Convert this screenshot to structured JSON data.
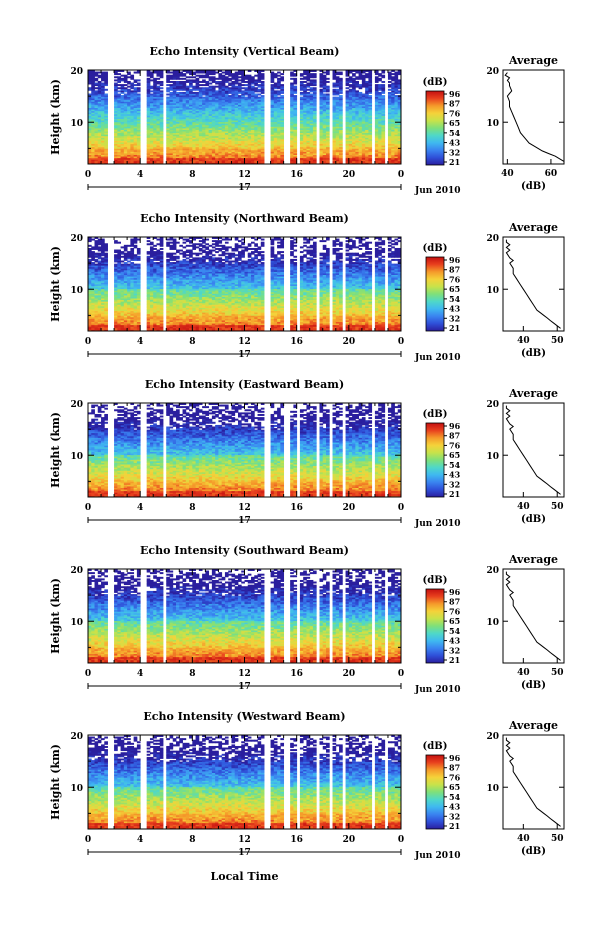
{
  "figure": {
    "bottom_xlabel": "Local Time",
    "date_label": "Jun 2010",
    "day_label": "17",
    "colorbar_unit": "(dB)",
    "colorbar_ticks": [
      "96",
      "87",
      "76",
      "65",
      "54",
      "43",
      "32",
      "21"
    ],
    "avg_title": "Average",
    "avg_xlabel": "(dB)"
  },
  "chart_data": [
    {
      "type": "heatmap",
      "title": "Echo Intensity (Vertical Beam)",
      "ylabel": "Height (km)",
      "xlabel": "",
      "xlim": [
        0,
        24
      ],
      "ylim": [
        2,
        20
      ],
      "xticks": [
        "0",
        "4",
        "8",
        "12",
        "16",
        "20",
        "0"
      ],
      "yticks": [
        "10",
        "20"
      ],
      "colorbar_ticks": [
        96,
        87,
        76,
        65,
        54,
        43,
        32,
        21
      ],
      "missing_time_bands": [
        [
          1.6,
          2.1
        ],
        [
          4.1,
          4.5
        ],
        [
          5.7,
          6.0
        ],
        [
          13.4,
          13.9
        ],
        [
          15.0,
          15.4
        ],
        [
          15.9,
          16.2
        ],
        [
          17.5,
          17.7
        ],
        [
          18.5,
          18.8
        ],
        [
          19.5,
          19.8
        ],
        [
          21.8,
          22.1
        ],
        [
          22.8,
          23.1
        ]
      ],
      "average_profile": {
        "xlabel": "(dB)",
        "xlim": [
          38,
          66
        ],
        "xticks": [
          "40",
          "60"
        ],
        "ylim": [
          2,
          20
        ],
        "yticks": [
          "10",
          "20"
        ],
        "x": [
          66,
          64,
          62,
          59,
          56,
          54,
          52,
          50,
          48,
          46,
          45,
          44,
          43,
          42,
          41,
          41,
          40,
          41,
          42,
          41,
          41,
          40,
          41,
          39,
          40
        ],
        "y": [
          2.5,
          3,
          3.5,
          4,
          4.5,
          5,
          5.5,
          6,
          7,
          8,
          9,
          10,
          11,
          12,
          13,
          14,
          15,
          15.5,
          16,
          17,
          17.5,
          18,
          18.5,
          19,
          19.5
        ]
      }
    },
    {
      "type": "heatmap",
      "title": "Echo Intensity (Northward Beam)",
      "ylabel": "Height (km)",
      "xlabel": "",
      "xlim": [
        0,
        24
      ],
      "ylim": [
        2,
        20
      ],
      "xticks": [
        "0",
        "4",
        "8",
        "12",
        "16",
        "20",
        "0"
      ],
      "yticks": [
        "10",
        "20"
      ],
      "colorbar_ticks": [
        96,
        87,
        76,
        65,
        54,
        43,
        32,
        21
      ],
      "missing_time_bands": [
        [
          1.6,
          2.1
        ],
        [
          4.1,
          4.5
        ],
        [
          5.7,
          6.0
        ],
        [
          13.4,
          13.9
        ],
        [
          15.0,
          15.4
        ],
        [
          15.9,
          16.2
        ],
        [
          17.5,
          17.7
        ],
        [
          18.5,
          18.8
        ],
        [
          19.5,
          19.8
        ],
        [
          21.8,
          22.1
        ],
        [
          22.8,
          23.1
        ]
      ],
      "average_profile": {
        "xlabel": "(dB)",
        "xlim": [
          34,
          52
        ],
        "xticks": [
          "40",
          "50"
        ],
        "ylim": [
          2,
          20
        ],
        "yticks": [
          "10",
          "20"
        ],
        "x": [
          51,
          50,
          49,
          48,
          47,
          46,
          45,
          44,
          43,
          42,
          41,
          40,
          39,
          38,
          37,
          37,
          36,
          37,
          36,
          35,
          36,
          35,
          36,
          35,
          35
        ],
        "y": [
          2.5,
          3,
          3.5,
          4,
          4.5,
          5,
          5.5,
          6,
          7,
          8,
          9,
          10,
          11,
          12,
          13,
          14,
          15,
          15.5,
          16,
          17,
          17.5,
          18,
          18.5,
          19,
          19.5
        ]
      }
    },
    {
      "type": "heatmap",
      "title": "Echo Intensity (Eastward Beam)",
      "ylabel": "Height (km)",
      "xlabel": "",
      "xlim": [
        0,
        24
      ],
      "ylim": [
        2,
        20
      ],
      "xticks": [
        "0",
        "4",
        "8",
        "12",
        "16",
        "20",
        "0"
      ],
      "yticks": [
        "10",
        "20"
      ],
      "colorbar_ticks": [
        96,
        87,
        76,
        65,
        54,
        43,
        32,
        21
      ],
      "missing_time_bands": [
        [
          1.6,
          2.1
        ],
        [
          4.1,
          4.5
        ],
        [
          5.7,
          6.0
        ],
        [
          13.4,
          13.9
        ],
        [
          15.0,
          15.4
        ],
        [
          15.9,
          16.2
        ],
        [
          17.5,
          17.7
        ],
        [
          18.5,
          18.8
        ],
        [
          19.5,
          19.8
        ],
        [
          21.8,
          22.1
        ],
        [
          22.8,
          23.1
        ]
      ],
      "average_profile": {
        "xlabel": "(dB)",
        "xlim": [
          34,
          52
        ],
        "xticks": [
          "40",
          "50"
        ],
        "ylim": [
          2,
          20
        ],
        "yticks": [
          "10",
          "20"
        ],
        "x": [
          51,
          50,
          49,
          48,
          47,
          46,
          45,
          44,
          43,
          42,
          41,
          40,
          39,
          38,
          37,
          37,
          36,
          37,
          36,
          35,
          36,
          35,
          36,
          35,
          35
        ],
        "y": [
          2.5,
          3,
          3.5,
          4,
          4.5,
          5,
          5.5,
          6,
          7,
          8,
          9,
          10,
          11,
          12,
          13,
          14,
          15,
          15.5,
          16,
          17,
          17.5,
          18,
          18.5,
          19,
          19.5
        ]
      }
    },
    {
      "type": "heatmap",
      "title": "Echo Intensity (Southward Beam)",
      "ylabel": "Height (km)",
      "xlabel": "",
      "xlim": [
        0,
        24
      ],
      "ylim": [
        2,
        20
      ],
      "xticks": [
        "0",
        "4",
        "8",
        "12",
        "16",
        "20",
        "0"
      ],
      "yticks": [
        "10",
        "20"
      ],
      "colorbar_ticks": [
        96,
        87,
        76,
        65,
        54,
        43,
        32,
        21
      ],
      "missing_time_bands": [
        [
          1.6,
          2.1
        ],
        [
          4.1,
          4.5
        ],
        [
          5.7,
          6.0
        ],
        [
          13.4,
          13.9
        ],
        [
          15.0,
          15.4
        ],
        [
          15.9,
          16.2
        ],
        [
          17.5,
          17.7
        ],
        [
          18.5,
          18.8
        ],
        [
          19.5,
          19.8
        ],
        [
          21.8,
          22.1
        ],
        [
          22.8,
          23.1
        ]
      ],
      "average_profile": {
        "xlabel": "(dB)",
        "xlim": [
          34,
          52
        ],
        "xticks": [
          "40",
          "50"
        ],
        "ylim": [
          2,
          20
        ],
        "yticks": [
          "10",
          "20"
        ],
        "x": [
          51,
          50,
          49,
          48,
          47,
          46,
          45,
          44,
          43,
          42,
          41,
          40,
          39,
          38,
          37,
          37,
          36,
          37,
          36,
          35,
          36,
          35,
          36,
          35,
          35
        ],
        "y": [
          2.5,
          3,
          3.5,
          4,
          4.5,
          5,
          5.5,
          6,
          7,
          8,
          9,
          10,
          11,
          12,
          13,
          14,
          15,
          15.5,
          16,
          17,
          17.5,
          18,
          18.5,
          19,
          19.5
        ]
      }
    },
    {
      "type": "heatmap",
      "title": "Echo Intensity (Westward Beam)",
      "ylabel": "Height (km)",
      "xlabel": "Local Time",
      "xlim": [
        0,
        24
      ],
      "ylim": [
        2,
        20
      ],
      "xticks": [
        "0",
        "4",
        "8",
        "12",
        "16",
        "20",
        "0"
      ],
      "yticks": [
        "10",
        "20"
      ],
      "colorbar_ticks": [
        96,
        87,
        76,
        65,
        54,
        43,
        32,
        21
      ],
      "missing_time_bands": [
        [
          1.6,
          2.1
        ],
        [
          4.1,
          4.5
        ],
        [
          5.7,
          6.0
        ],
        [
          13.4,
          13.9
        ],
        [
          15.0,
          15.4
        ],
        [
          15.9,
          16.2
        ],
        [
          17.5,
          17.7
        ],
        [
          18.5,
          18.8
        ],
        [
          19.5,
          19.8
        ],
        [
          21.8,
          22.1
        ],
        [
          22.8,
          23.1
        ]
      ],
      "average_profile": {
        "xlabel": "(dB)",
        "xlim": [
          34,
          52
        ],
        "xticks": [
          "40",
          "50"
        ],
        "ylim": [
          2,
          20
        ],
        "yticks": [
          "10",
          "20"
        ],
        "x": [
          51,
          50,
          49,
          48,
          47,
          46,
          45,
          44,
          43,
          42,
          41,
          40,
          39,
          38,
          37,
          37,
          36,
          37,
          36,
          35,
          36,
          35,
          36,
          35,
          35
        ],
        "y": [
          2.5,
          3,
          3.5,
          4,
          4.5,
          5,
          5.5,
          6,
          7,
          8,
          9,
          10,
          11,
          12,
          13,
          14,
          15,
          15.5,
          16,
          17,
          17.5,
          18,
          18.5,
          19,
          19.5
        ]
      }
    }
  ],
  "colors": {
    "colormap": [
      "#2a1e9e",
      "#2f4fd8",
      "#3a84f0",
      "#3fb9f0",
      "#4fd8c8",
      "#7fe07a",
      "#c8e24a",
      "#f5d23a",
      "#f59a2a",
      "#e8401e",
      "#c41010"
    ]
  }
}
